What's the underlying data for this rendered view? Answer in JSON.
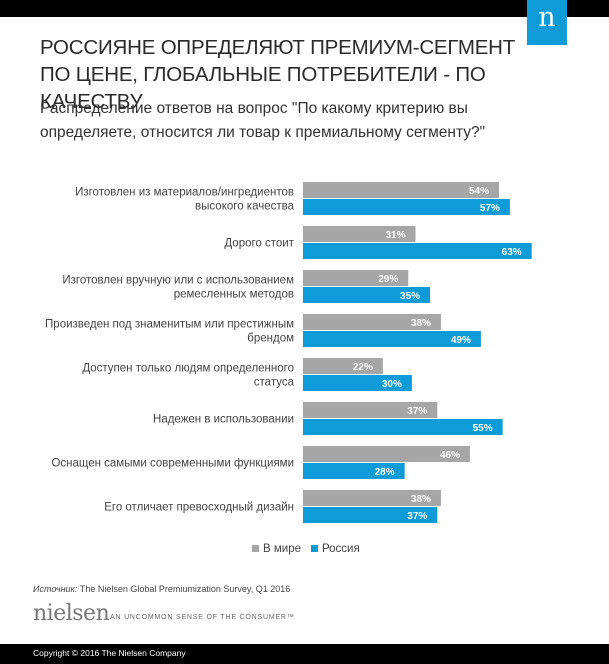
{
  "header": {
    "logo_letter": "n",
    "title": "РОССИЯНЕ ОПРЕДЕЛЯЮТ ПРЕМИУМ-СЕГМЕНТ ПО ЦЕНЕ, ГЛОБАЛЬНЫЕ ПОТРЕБИТЕЛИ - ПО КАЧЕСТВУ",
    "subtitle": "Распределение ответов на вопрос \"По какому критерию вы определяете, относится ли товар к премиальному сегменту?\""
  },
  "chart_data": {
    "type": "bar",
    "orientation": "horizontal",
    "categories": [
      [
        "Изготовлен из материалов/ингредиентов",
        "высокого качества"
      ],
      [
        "Дорого стоит"
      ],
      [
        "Изготовлен вручную или с использованием",
        "ремесленных методов"
      ],
      [
        "Произведен под знаменитым или престижным",
        "брендом"
      ],
      [
        "Доступен только людям определенного",
        "статуса"
      ],
      [
        "Надежен в использовании"
      ],
      [
        "Оснащен самыми современными функциями"
      ],
      [
        "Его отличает превосходный дизайн"
      ]
    ],
    "series": [
      {
        "name": "В мире",
        "color": "#a6a6a6",
        "values": [
          54,
          31,
          29,
          38,
          22,
          37,
          46,
          38
        ]
      },
      {
        "name": "Россия",
        "color": "#0e9bd8",
        "values": [
          57,
          63,
          35,
          49,
          30,
          55,
          28,
          37
        ]
      }
    ],
    "value_suffix": "%",
    "xlim": [
      0,
      100
    ],
    "grid": false,
    "legend_position": "bottom"
  },
  "footer": {
    "source_label": "Источник:",
    "source_text": "The Nielsen Global Premiumization Survey, Q1 2016",
    "brand": "nielsen",
    "tagline": "AN UNCOMMON SENSE OF THE CONSUMER™",
    "copyright": "Copyright © 2016 The Nielsen Company"
  }
}
